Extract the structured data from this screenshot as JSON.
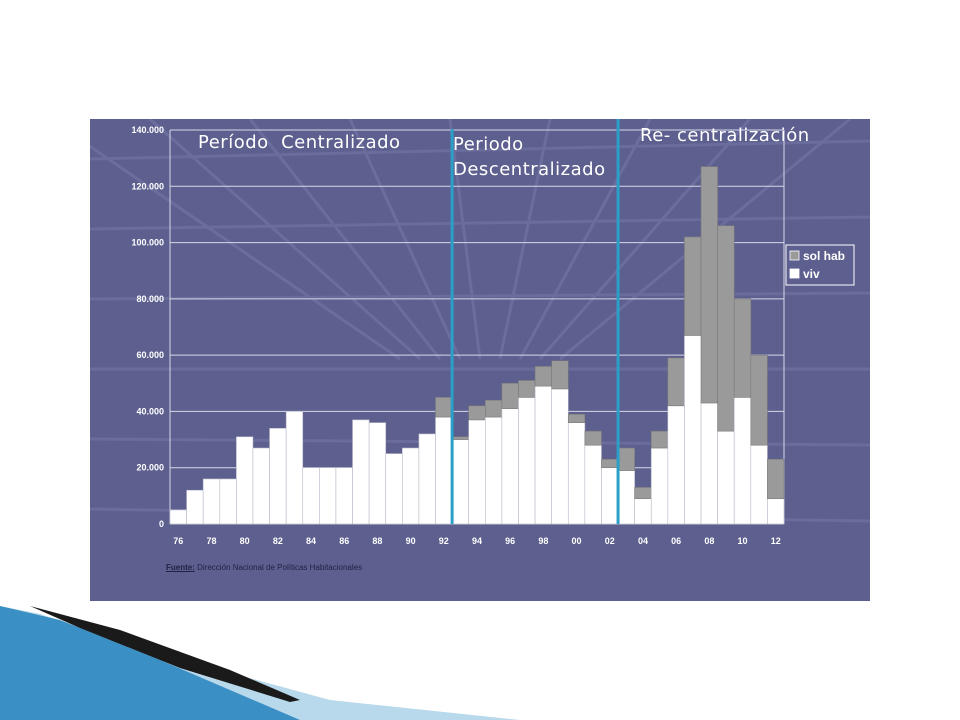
{
  "annotations": {
    "period_1": "Período  Centralizado",
    "period_2_line1": "Periodo",
    "period_2_line2": "Descentralizado",
    "period_3": "Re- centralización"
  },
  "source": {
    "label": "Fuente:",
    "text": "Dirección Nacional de Políticas Habitacionales"
  },
  "colors": {
    "panel_background": "#5d5f8f",
    "viv": "#ffffff",
    "sol_hab": "#9a9a9a",
    "divider": "#2aa0c8",
    "gridline": "#d8d8e8"
  },
  "chart_data": {
    "type": "bar",
    "stacked": true,
    "title": "",
    "xlabel": "",
    "ylabel": "",
    "ylim": [
      0,
      140000
    ],
    "y_ticks": [
      "0",
      "20.000",
      "40.000",
      "60.000",
      "80.000",
      "100.000",
      "120.000",
      "140.000"
    ],
    "x_tick_labels": [
      "76",
      "78",
      "80",
      "82",
      "84",
      "86",
      "88",
      "90",
      "92",
      "94",
      "96",
      "98",
      "00",
      "02",
      "04",
      "06",
      "08",
      "10",
      "12"
    ],
    "categories": [
      "76",
      "77",
      "78",
      "79",
      "80",
      "81",
      "82",
      "83",
      "84",
      "85",
      "86",
      "87",
      "88",
      "89",
      "90",
      "91",
      "92",
      "93",
      "94",
      "95",
      "96",
      "97",
      "98",
      "99",
      "00",
      "01",
      "02",
      "03",
      "04",
      "05",
      "06",
      "07",
      "08",
      "09",
      "10",
      "11",
      "12"
    ],
    "series": [
      {
        "name": "viv",
        "color": "#ffffff",
        "values": [
          5000,
          12000,
          16000,
          16000,
          31000,
          27000,
          34000,
          40000,
          20000,
          20000,
          20000,
          37000,
          36000,
          25000,
          27000,
          32000,
          38000,
          30000,
          37000,
          38000,
          41000,
          45000,
          49000,
          48000,
          36000,
          28000,
          20000,
          19000,
          9000,
          27000,
          42000,
          67000,
          43000,
          33000,
          45000,
          28000,
          9000
        ]
      },
      {
        "name": "sol hab",
        "color": "#9a9a9a",
        "values": [
          0,
          0,
          0,
          0,
          0,
          0,
          0,
          0,
          0,
          0,
          0,
          0,
          0,
          0,
          0,
          0,
          7000,
          1000,
          5000,
          6000,
          9000,
          6000,
          7000,
          10000,
          3000,
          5000,
          3000,
          8000,
          4000,
          6000,
          17000,
          35000,
          84000,
          73000,
          35000,
          32000,
          14000
        ]
      }
    ],
    "legend": {
      "position": "right",
      "entries": [
        "sol hab",
        "viv"
      ]
    },
    "grid": true,
    "dividers_after_year": [
      "92",
      "02"
    ]
  }
}
